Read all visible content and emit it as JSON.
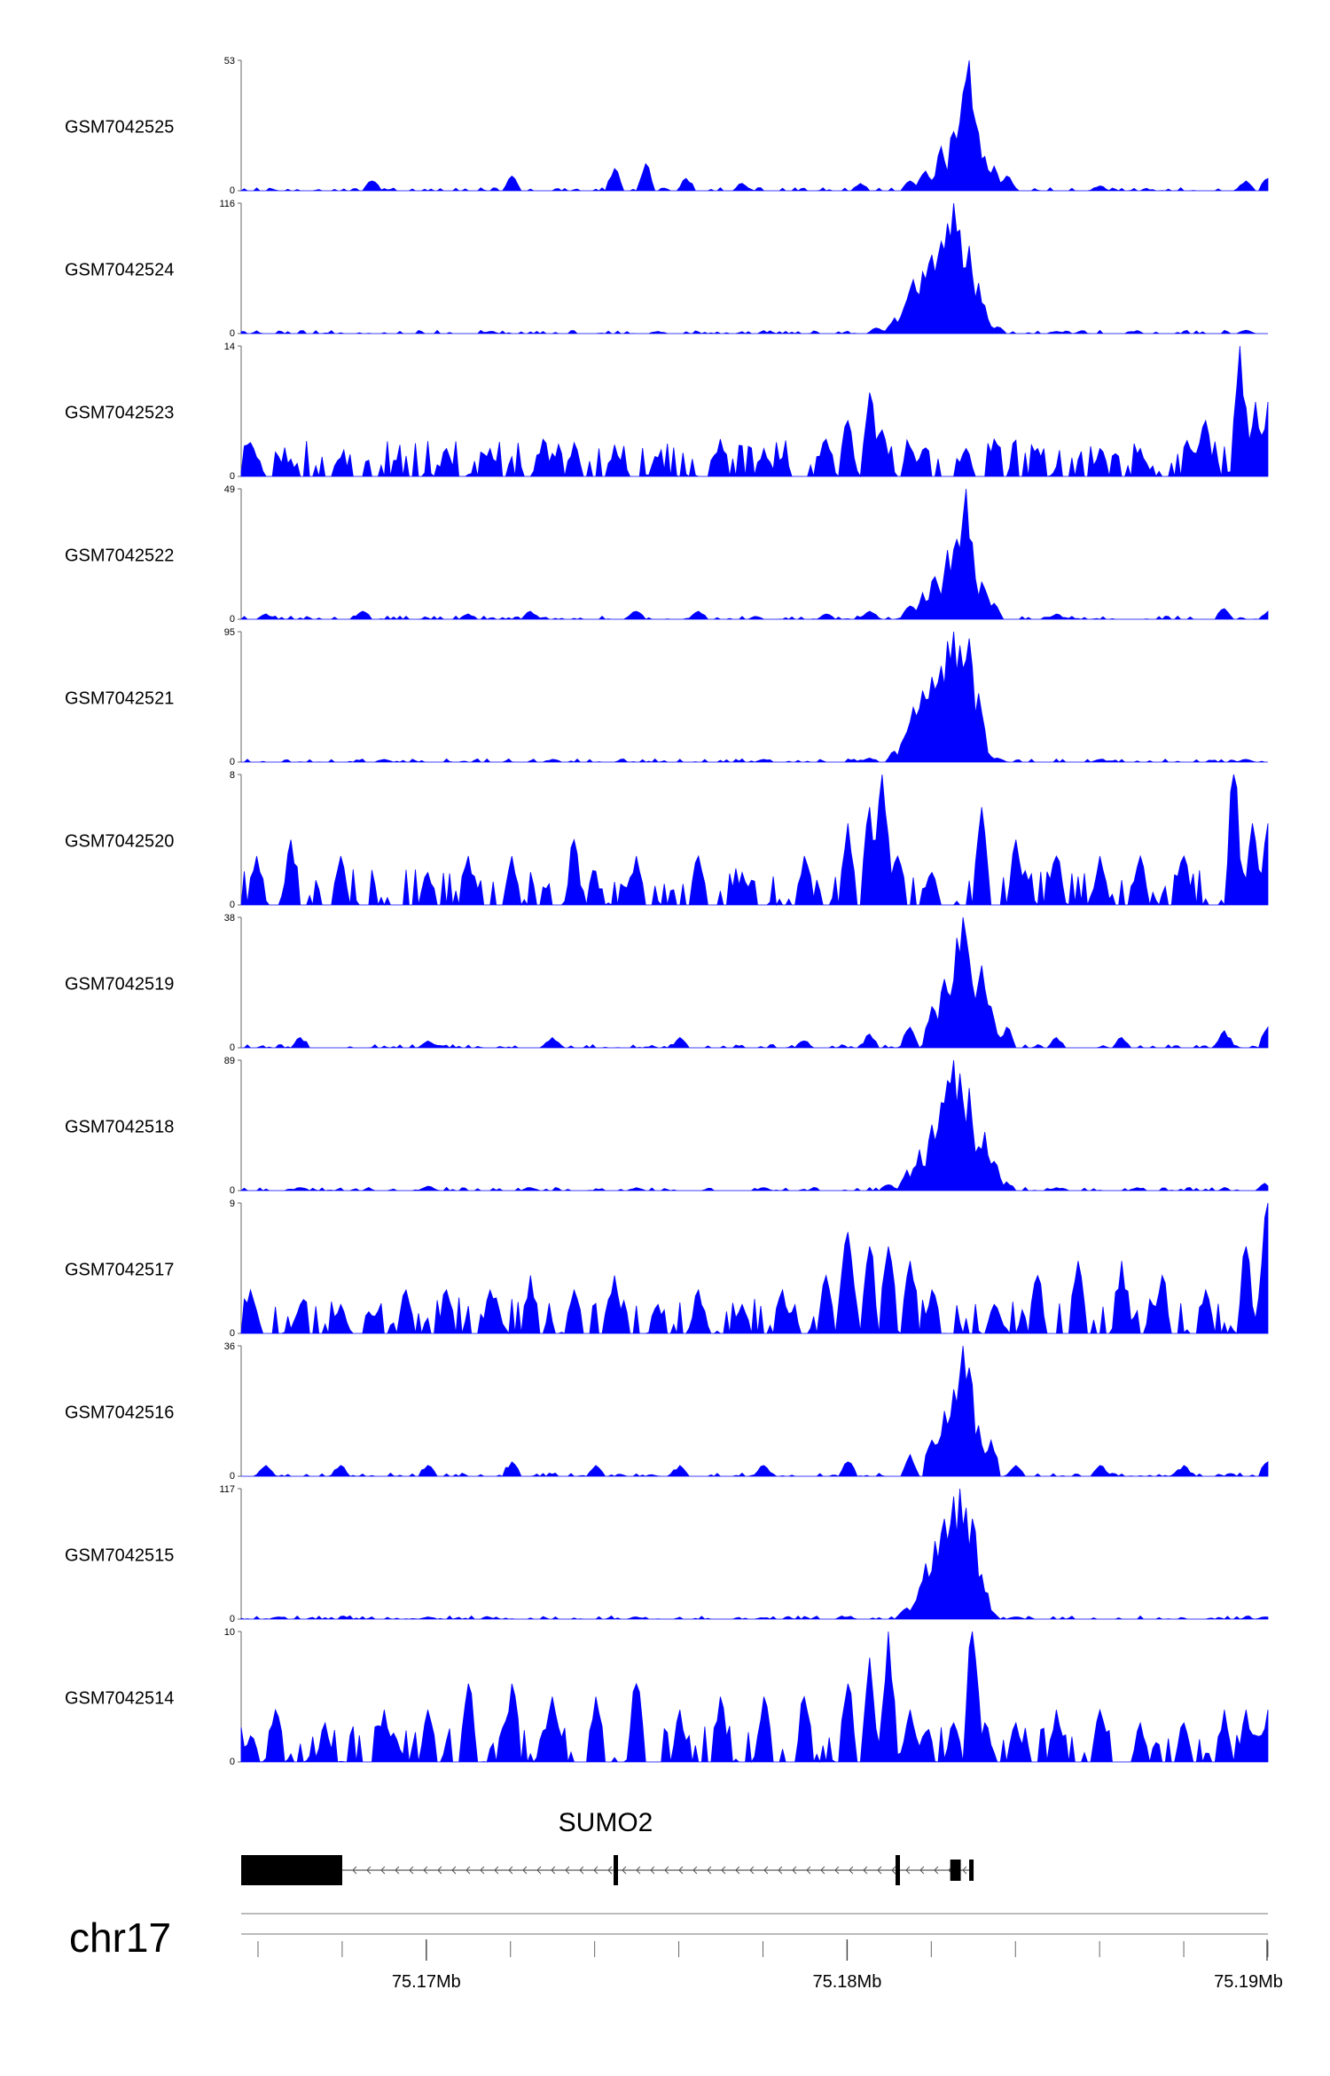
{
  "chart_data": {
    "type": "area",
    "colors": {
      "signal": "#0000ff",
      "axis": "#000000",
      "gene": "#000000"
    },
    "tracks": [
      {
        "name": "GSM7042525",
        "ymax": 53,
        "ymin": 0,
        "peaks": [
          [
            75.1687,
            4
          ],
          [
            75.172,
            6
          ],
          [
            75.1745,
            9
          ],
          [
            75.1752,
            11
          ],
          [
            75.1762,
            5
          ],
          [
            75.1775,
            3
          ],
          [
            75.1803,
            3
          ],
          [
            75.1815,
            4
          ],
          [
            75.1819,
            8
          ],
          [
            75.1822,
            18
          ],
          [
            75.1825,
            24
          ],
          [
            75.18265,
            28
          ],
          [
            75.1828,
            45
          ],
          [
            75.1829,
            53
          ],
          [
            75.18305,
            28
          ],
          [
            75.1833,
            14
          ],
          [
            75.1835,
            10
          ],
          [
            75.1838,
            6
          ],
          [
            75.186,
            2
          ],
          [
            75.1895,
            4
          ],
          [
            75.19,
            5
          ]
        ]
      },
      {
        "name": "GSM7042524",
        "ymax": 116,
        "ymin": 0,
        "peaks": [
          [
            75.1715,
            2
          ],
          [
            75.1755,
            2
          ],
          [
            75.1807,
            5
          ],
          [
            75.1811,
            14
          ],
          [
            75.1814,
            30
          ],
          [
            75.1816,
            48
          ],
          [
            75.1818,
            55
          ],
          [
            75.182,
            70
          ],
          [
            75.1822,
            82
          ],
          [
            75.1824,
            98
          ],
          [
            75.18255,
            116
          ],
          [
            75.1827,
            92
          ],
          [
            75.1829,
            78
          ],
          [
            75.1831,
            45
          ],
          [
            75.1833,
            15
          ],
          [
            75.1836,
            6
          ],
          [
            75.185,
            2
          ],
          [
            75.1895,
            3
          ]
        ]
      },
      {
        "name": "GSM7042523",
        "ymax": 14,
        "ymin": 0,
        "peaks": [
          [
            75.1659,
            3
          ],
          [
            75.1666,
            2
          ],
          [
            75.168,
            2
          ],
          [
            75.1705,
            3
          ],
          [
            75.1715,
            3
          ],
          [
            75.1728,
            4
          ],
          [
            75.1735,
            3
          ],
          [
            75.1745,
            3
          ],
          [
            75.1755,
            2
          ],
          [
            75.177,
            4
          ],
          [
            75.178,
            3
          ],
          [
            75.1785,
            2
          ],
          [
            75.1795,
            4
          ],
          [
            75.18,
            6
          ],
          [
            75.1805,
            9
          ],
          [
            75.1808,
            5
          ],
          [
            75.1815,
            3
          ],
          [
            75.1828,
            3
          ],
          [
            75.1835,
            4
          ],
          [
            75.1845,
            3
          ],
          [
            75.186,
            3
          ],
          [
            75.187,
            3
          ],
          [
            75.1885,
            6
          ],
          [
            75.1893,
            14
          ],
          [
            75.1897,
            8
          ],
          [
            75.19,
            8
          ]
        ]
      },
      {
        "name": "GSM7042522",
        "ymax": 49,
        "ymin": 0,
        "peaks": [
          [
            75.1662,
            2
          ],
          [
            75.1685,
            3
          ],
          [
            75.171,
            2
          ],
          [
            75.1725,
            3
          ],
          [
            75.175,
            3
          ],
          [
            75.1765,
            3
          ],
          [
            75.1795,
            2
          ],
          [
            75.1805,
            3
          ],
          [
            75.1815,
            5
          ],
          [
            75.1818,
            10
          ],
          [
            75.1821,
            16
          ],
          [
            75.1824,
            26
          ],
          [
            75.1826,
            30
          ],
          [
            75.18275,
            38
          ],
          [
            75.18285,
            49
          ],
          [
            75.183,
            18
          ],
          [
            75.1832,
            14
          ],
          [
            75.1835,
            6
          ],
          [
            75.185,
            2
          ],
          [
            75.189,
            4
          ],
          [
            75.19,
            3
          ]
        ]
      },
      {
        "name": "GSM7042521",
        "ymax": 95,
        "ymin": 0,
        "peaks": [
          [
            75.169,
            2
          ],
          [
            75.173,
            2
          ],
          [
            75.178,
            2
          ],
          [
            75.1805,
            3
          ],
          [
            75.1811,
            8
          ],
          [
            75.1814,
            22
          ],
          [
            75.1816,
            40
          ],
          [
            75.1818,
            52
          ],
          [
            75.182,
            62
          ],
          [
            75.1822,
            70
          ],
          [
            75.1824,
            88
          ],
          [
            75.18255,
            95
          ],
          [
            75.1827,
            85
          ],
          [
            75.1829,
            90
          ],
          [
            75.1831,
            50
          ],
          [
            75.1833,
            10
          ],
          [
            75.1836,
            3
          ],
          [
            75.186,
            2
          ],
          [
            75.1895,
            2
          ]
        ]
      },
      {
        "name": "GSM7042520",
        "ymax": 8,
        "ymin": 0,
        "peaks": [
          [
            75.166,
            3
          ],
          [
            75.1668,
            4
          ],
          [
            75.168,
            3
          ],
          [
            75.17,
            2
          ],
          [
            75.171,
            3
          ],
          [
            75.172,
            3
          ],
          [
            75.1735,
            4
          ],
          [
            75.175,
            3
          ],
          [
            75.1765,
            3
          ],
          [
            75.1775,
            2
          ],
          [
            75.179,
            3
          ],
          [
            75.18,
            5
          ],
          [
            75.1805,
            6
          ],
          [
            75.1808,
            8
          ],
          [
            75.1812,
            3
          ],
          [
            75.182,
            2
          ],
          [
            75.1832,
            6
          ],
          [
            75.184,
            4
          ],
          [
            75.185,
            3
          ],
          [
            75.186,
            3
          ],
          [
            75.187,
            3
          ],
          [
            75.188,
            3
          ],
          [
            75.1892,
            8
          ],
          [
            75.1896,
            5
          ],
          [
            75.19,
            5
          ]
        ]
      },
      {
        "name": "GSM7042519",
        "ymax": 38,
        "ymin": 0,
        "peaks": [
          [
            75.167,
            3
          ],
          [
            75.17,
            2
          ],
          [
            75.173,
            3
          ],
          [
            75.176,
            3
          ],
          [
            75.179,
            2
          ],
          [
            75.1805,
            4
          ],
          [
            75.1815,
            6
          ],
          [
            75.182,
            12
          ],
          [
            75.1823,
            20
          ],
          [
            75.1826,
            32
          ],
          [
            75.18275,
            38
          ],
          [
            75.1829,
            26
          ],
          [
            75.1832,
            24
          ],
          [
            75.1834,
            12
          ],
          [
            75.1838,
            6
          ],
          [
            75.185,
            3
          ],
          [
            75.1865,
            3
          ],
          [
            75.189,
            5
          ],
          [
            75.19,
            6
          ]
        ]
      },
      {
        "name": "GSM7042518",
        "ymax": 89,
        "ymin": 0,
        "peaks": [
          [
            75.167,
            2
          ],
          [
            75.17,
            3
          ],
          [
            75.1725,
            2
          ],
          [
            75.175,
            2
          ],
          [
            75.178,
            2
          ],
          [
            75.181,
            4
          ],
          [
            75.1814,
            14
          ],
          [
            75.1817,
            28
          ],
          [
            75.182,
            45
          ],
          [
            75.1822,
            60
          ],
          [
            75.1824,
            75
          ],
          [
            75.18255,
            89
          ],
          [
            75.1827,
            80
          ],
          [
            75.1829,
            70
          ],
          [
            75.1831,
            30
          ],
          [
            75.1833,
            40
          ],
          [
            75.1835,
            20
          ],
          [
            75.1838,
            6
          ],
          [
            75.185,
            2
          ],
          [
            75.1899,
            5
          ]
        ]
      },
      {
        "name": "GSM7042517",
        "ymax": 9,
        "ymin": 0,
        "peaks": [
          [
            75.1658,
            3
          ],
          [
            75.167,
            2
          ],
          [
            75.168,
            2
          ],
          [
            75.1695,
            3
          ],
          [
            75.1705,
            3
          ],
          [
            75.1715,
            3
          ],
          [
            75.1725,
            4
          ],
          [
            75.1735,
            3
          ],
          [
            75.1745,
            4
          ],
          [
            75.1755,
            2
          ],
          [
            75.1765,
            3
          ],
          [
            75.1775,
            2
          ],
          [
            75.1785,
            3
          ],
          [
            75.1795,
            4
          ],
          [
            75.18,
            7
          ],
          [
            75.1805,
            6
          ],
          [
            75.181,
            6
          ],
          [
            75.1815,
            5
          ],
          [
            75.182,
            3
          ],
          [
            75.1835,
            2
          ],
          [
            75.1845,
            4
          ],
          [
            75.1855,
            5
          ],
          [
            75.1865,
            5
          ],
          [
            75.1875,
            4
          ],
          [
            75.1885,
            3
          ],
          [
            75.1895,
            6
          ],
          [
            75.19,
            9
          ]
        ]
      },
      {
        "name": "GSM7042516",
        "ymax": 36,
        "ymin": 0,
        "peaks": [
          [
            75.1662,
            3
          ],
          [
            75.168,
            3
          ],
          [
            75.17,
            3
          ],
          [
            75.172,
            4
          ],
          [
            75.174,
            3
          ],
          [
            75.176,
            3
          ],
          [
            75.178,
            3
          ],
          [
            75.18,
            4
          ],
          [
            75.1815,
            6
          ],
          [
            75.182,
            10
          ],
          [
            75.1823,
            18
          ],
          [
            75.1825,
            24
          ],
          [
            75.18265,
            28
          ],
          [
            75.18275,
            36
          ],
          [
            75.1829,
            30
          ],
          [
            75.1831,
            14
          ],
          [
            75.1834,
            10
          ],
          [
            75.184,
            3
          ],
          [
            75.186,
            3
          ],
          [
            75.188,
            3
          ],
          [
            75.19,
            4
          ]
        ]
      },
      {
        "name": "GSM7042515",
        "ymax": 117,
        "ymin": 0,
        "peaks": [
          [
            75.1665,
            2
          ],
          [
            75.17,
            2
          ],
          [
            75.175,
            2
          ],
          [
            75.18,
            2
          ],
          [
            75.1814,
            10
          ],
          [
            75.1817,
            28
          ],
          [
            75.1819,
            50
          ],
          [
            75.1821,
            70
          ],
          [
            75.1823,
            90
          ],
          [
            75.1825,
            110
          ],
          [
            75.18265,
            117
          ],
          [
            75.1828,
            100
          ],
          [
            75.183,
            90
          ],
          [
            75.1832,
            40
          ],
          [
            75.1834,
            8
          ],
          [
            75.184,
            2
          ],
          [
            75.1899,
            2
          ]
        ]
      },
      {
        "name": "GSM7042514",
        "ymax": 10,
        "ymin": 0,
        "peaks": [
          [
            75.1658,
            2
          ],
          [
            75.1664,
            4
          ],
          [
            75.1676,
            3
          ],
          [
            75.169,
            4
          ],
          [
            75.17,
            4
          ],
          [
            75.171,
            6
          ],
          [
            75.172,
            6
          ],
          [
            75.173,
            5
          ],
          [
            75.174,
            5
          ],
          [
            75.175,
            6
          ],
          [
            75.176,
            4
          ],
          [
            75.177,
            5
          ],
          [
            75.178,
            5
          ],
          [
            75.179,
            5
          ],
          [
            75.18,
            6
          ],
          [
            75.1805,
            8
          ],
          [
            75.181,
            10
          ],
          [
            75.1815,
            4
          ],
          [
            75.1825,
            3
          ],
          [
            75.183,
            10
          ],
          [
            75.1833,
            3
          ],
          [
            75.184,
            3
          ],
          [
            75.185,
            4
          ],
          [
            75.186,
            4
          ],
          [
            75.187,
            3
          ],
          [
            75.188,
            3
          ],
          [
            75.189,
            4
          ],
          [
            75.1895,
            4
          ],
          [
            75.19,
            4
          ]
        ]
      }
    ],
    "gene": {
      "name": "SUMO2",
      "strand": "-",
      "intron_span": [
        75.168,
        75.183
      ],
      "exons": [
        [
          75.1656,
          75.168,
          "tall"
        ],
        [
          75.17445,
          75.1745,
          "tall"
        ],
        [
          75.18115,
          75.1812,
          "tall"
        ],
        [
          75.18245,
          75.1827,
          "short"
        ],
        [
          75.1829,
          75.183,
          "short"
        ]
      ]
    },
    "chromosome": "chr17",
    "x_range": [
      75.1656,
      75.19
    ],
    "x_ticks": [
      {
        "value": 75.17,
        "label": "75.17Mb"
      },
      {
        "value": 75.18,
        "label": "75.18Mb"
      },
      {
        "value": 75.19,
        "label": "75.19Mb"
      }
    ],
    "minor_tick_step": 0.002
  }
}
